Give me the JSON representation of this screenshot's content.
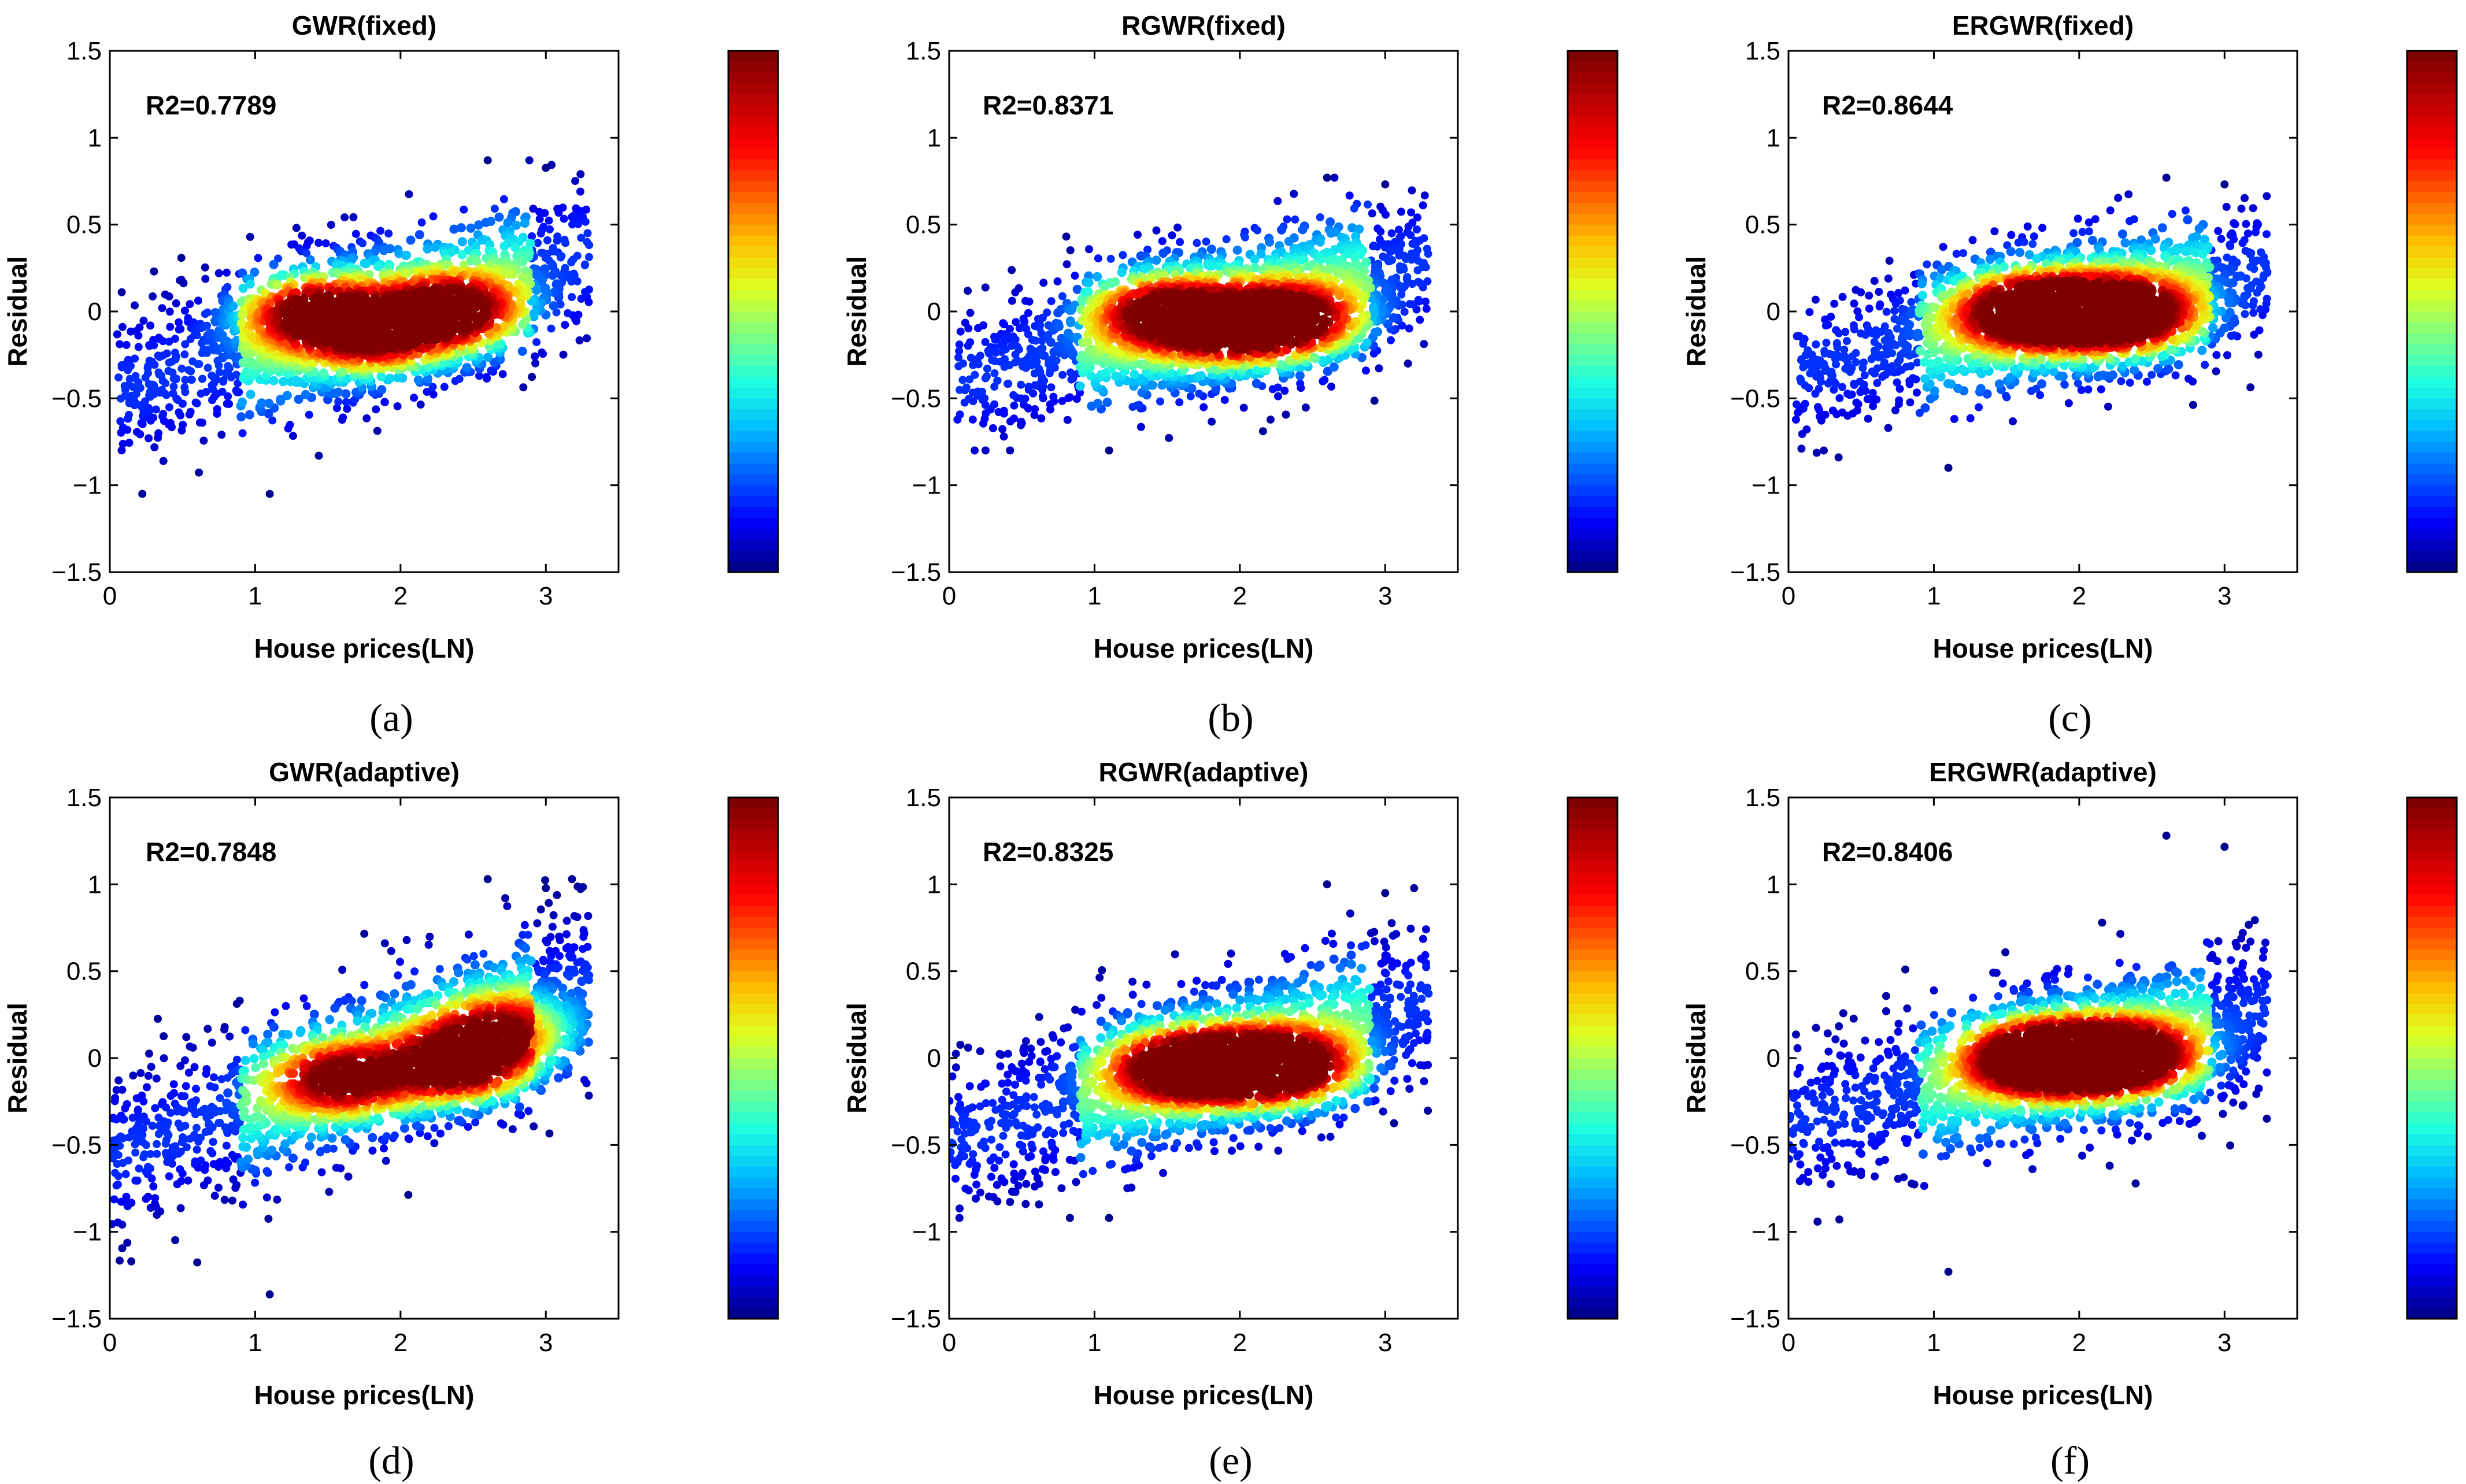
{
  "figure": {
    "description_free": true
  },
  "colorscale": [
    "#00008f",
    "#0000ff",
    "#0060ff",
    "#00bfff",
    "#20ffdf",
    "#80ff80",
    "#dfff20",
    "#ffbf00",
    "#ff6000",
    "#ff0000",
    "#bf0000",
    "#800000"
  ],
  "chart_data": [
    {
      "type": "scatter",
      "id": "a",
      "title": "GWR(fixed)",
      "annotation": "R2=0.7789",
      "caption": "(a)",
      "xlabel": "House prices(LN)",
      "ylabel": "Residual",
      "xlim": [
        0,
        3.5
      ],
      "ylim": [
        -1.5,
        1.5
      ],
      "xticks": [
        "0",
        "1",
        "2",
        "3"
      ],
      "yticks": [
        "1.5",
        "1",
        "0.5",
        "0",
        "−0.5",
        "−1",
        "−1.5"
      ],
      "clusters": [
        [
          1.4,
          0.0,
          0.9
        ],
        [
          2.35,
          0.0,
          1.0
        ],
        [
          1.85,
          -0.15,
          0.7
        ]
      ],
      "trend": {
        "slope": 0.25,
        "spread": 0.22,
        "x_min": 0.05,
        "x_max": 3.3,
        "y_max_outlier": 0.87,
        "y_min_outlier": -1.05
      },
      "colorbar": true
    },
    {
      "type": "scatter",
      "id": "b",
      "title": "RGWR(fixed)",
      "annotation": "R2=0.8371",
      "caption": "(b)",
      "xlabel": "House prices(LN)",
      "ylabel": "Residual",
      "xlim": [
        0,
        3.5
      ],
      "ylim": [
        -1.5,
        1.5
      ],
      "xticks": [
        "0",
        "1",
        "2",
        "3"
      ],
      "yticks": [
        "1.5",
        "1",
        "0.5",
        "0",
        "−0.5",
        "−1",
        "−1.5"
      ],
      "clusters": [
        [
          1.45,
          0.0,
          0.85
        ],
        [
          2.35,
          -0.05,
          1.0
        ],
        [
          1.9,
          -0.1,
          0.75
        ]
      ],
      "trend": {
        "slope": 0.22,
        "spread": 0.2,
        "x_min": 0.05,
        "x_max": 3.3,
        "y_max_outlier": 0.77,
        "y_min_outlier": -0.8
      },
      "colorbar": true
    },
    {
      "type": "scatter",
      "id": "c",
      "title": "ERGWR(fixed)",
      "annotation": "R2=0.8644",
      "caption": "(c)",
      "xlabel": "House prices(LN)",
      "ylabel": "Residual",
      "xlim": [
        0,
        3.5
      ],
      "ylim": [
        -1.5,
        1.5
      ],
      "xticks": [
        "0",
        "1",
        "2",
        "3"
      ],
      "yticks": [
        "1.5",
        "1",
        "0.5",
        "0",
        "−0.5",
        "−1",
        "−1.5"
      ],
      "clusters": [
        [
          1.6,
          0.0,
          1.0
        ],
        [
          2.35,
          -0.02,
          1.0
        ],
        [
          2.0,
          0.0,
          0.7
        ]
      ],
      "trend": {
        "slope": 0.18,
        "spread": 0.2,
        "x_min": 0.05,
        "x_max": 3.3,
        "y_max_outlier": 0.77,
        "y_min_outlier": -0.9
      },
      "colorbar": true
    },
    {
      "type": "scatter",
      "id": "d",
      "title": "GWR(adaptive)",
      "annotation": "R2=0.7848",
      "caption": "(d)",
      "xlabel": "House prices(LN)",
      "ylabel": "Residual",
      "xlim": [
        0,
        3.5
      ],
      "ylim": [
        -1.5,
        1.5
      ],
      "xticks": [
        "0",
        "1",
        "2",
        "3"
      ],
      "yticks": [
        "1.5",
        "1",
        "0.5",
        "0",
        "−0.5",
        "−1",
        "−1.5"
      ],
      "clusters": [
        [
          1.6,
          -0.12,
          0.85
        ],
        [
          2.4,
          -0.05,
          1.0
        ],
        [
          2.7,
          0.15,
          0.7
        ]
      ],
      "trend": {
        "slope": 0.3,
        "spread": 0.25,
        "x_min": 0.0,
        "x_max": 3.3,
        "y_max_outlier": 1.03,
        "y_min_outlier": -1.36
      },
      "colorbar": true
    },
    {
      "type": "scatter",
      "id": "e",
      "title": "RGWR(adaptive)",
      "annotation": "R2=0.8325",
      "caption": "(e)",
      "xlabel": "House prices(LN)",
      "ylabel": "Residual",
      "xlim": [
        0,
        3.5
      ],
      "ylim": [
        -1.5,
        1.5
      ],
      "xticks": [
        "0",
        "1",
        "2",
        "3"
      ],
      "yticks": [
        "1.5",
        "1",
        "0.5",
        "0",
        "−0.5",
        "−1",
        "−1.5"
      ],
      "clusters": [
        [
          1.55,
          -0.05,
          0.9
        ],
        [
          2.35,
          -0.05,
          1.0
        ],
        [
          1.95,
          -0.05,
          0.75
        ]
      ],
      "trend": {
        "slope": 0.25,
        "spread": 0.23,
        "x_min": 0.0,
        "x_max": 3.3,
        "y_max_outlier": 1.0,
        "y_min_outlier": -0.92
      },
      "colorbar": true
    },
    {
      "type": "scatter",
      "id": "f",
      "title": "ERGWR(adaptive)",
      "annotation": "R2=0.8406",
      "caption": "(f)",
      "xlabel": "House prices(LN)",
      "ylabel": "Residual",
      "xlim": [
        0,
        3.5
      ],
      "ylim": [
        -1.5,
        1.5
      ],
      "xticks": [
        "0",
        "1",
        "2",
        "3"
      ],
      "yticks": [
        "1.5",
        "1",
        "0.5",
        "0",
        "−0.5",
        "−1",
        "−1.5"
      ],
      "clusters": [
        [
          1.65,
          0.0,
          1.0
        ],
        [
          2.35,
          0.0,
          1.0
        ],
        [
          2.0,
          0.0,
          0.75
        ]
      ],
      "trend": {
        "slope": 0.2,
        "spread": 0.23,
        "x_min": 0.0,
        "x_max": 3.3,
        "y_max_outlier": 1.28,
        "y_min_outlier": -1.23
      },
      "colorbar": true
    }
  ]
}
